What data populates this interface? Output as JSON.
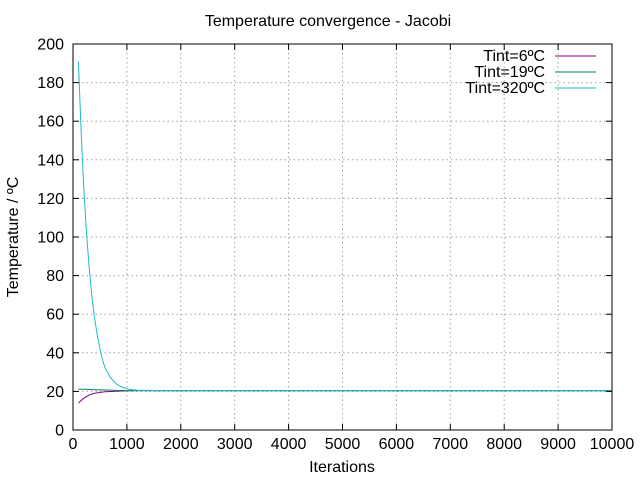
{
  "chart_data": {
    "type": "line",
    "title": "Temperature convergence - Jacobi",
    "xlabel": "Iterations",
    "ylabel": "Temperature / ºC",
    "xlim": [
      0,
      10000
    ],
    "ylim": [
      0,
      200
    ],
    "xticks": [
      0,
      1000,
      2000,
      3000,
      4000,
      5000,
      6000,
      7000,
      8000,
      9000,
      10000
    ],
    "yticks": [
      0,
      20,
      40,
      60,
      80,
      100,
      120,
      140,
      160,
      180,
      200
    ],
    "grid": true,
    "legend_position": "top-right",
    "series": [
      {
        "name": "Tint=6ºC",
        "color": "#8b008b",
        "x": [
          100,
          200,
          300,
          400,
          500,
          600,
          800,
          1000,
          1200,
          2000,
          4000,
          6000,
          8000,
          10000
        ],
        "y": [
          14,
          16.5,
          18.2,
          19.0,
          19.5,
          19.8,
          20.1,
          20.3,
          20.4,
          20.4,
          20.4,
          20.4,
          20.4,
          20.4
        ]
      },
      {
        "name": "Tint=19ºC",
        "color": "#00884f",
        "x": [
          100,
          200,
          400,
          600,
          800,
          1000,
          1200,
          2000,
          4000,
          6000,
          8000,
          10000
        ],
        "y": [
          21.2,
          21.1,
          20.9,
          20.7,
          20.5,
          20.4,
          20.4,
          20.4,
          20.4,
          20.4,
          20.4,
          20.4
        ]
      },
      {
        "name": "Tint=320ºC",
        "color": "#22b8cf",
        "x": [
          100,
          150,
          200,
          250,
          300,
          350,
          400,
          450,
          500,
          550,
          600,
          700,
          800,
          900,
          1000,
          1100,
          1200,
          1400,
          1600,
          2000,
          4000,
          6000,
          8000,
          10000
        ],
        "y": [
          191,
          155,
          125,
          102,
          84,
          69,
          58,
          49,
          42,
          36,
          32,
          27,
          24,
          22.3,
          21.4,
          20.9,
          20.6,
          20.5,
          20.4,
          20.4,
          20.4,
          20.4,
          20.4,
          20.4
        ]
      }
    ]
  }
}
